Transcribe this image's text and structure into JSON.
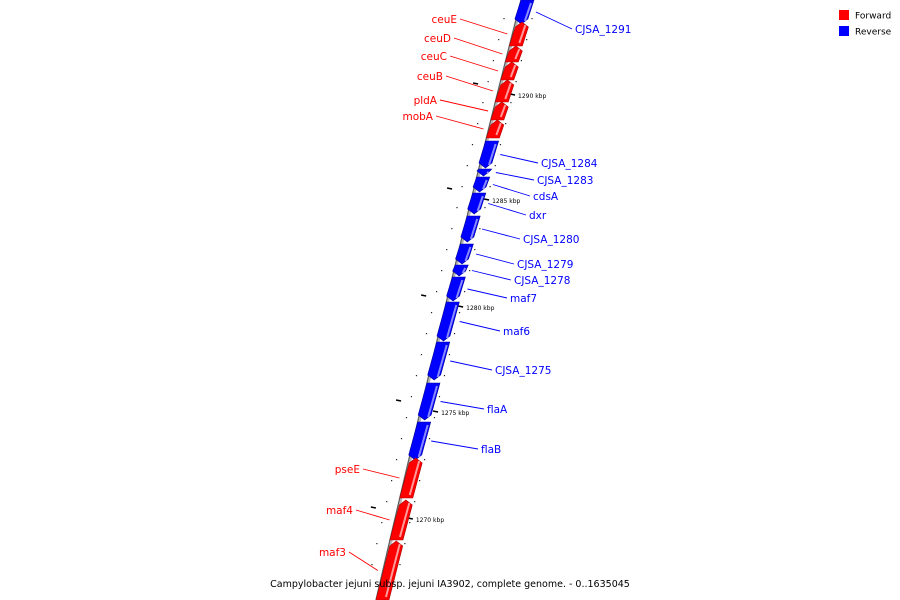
{
  "caption": "Campylobacter jejuni subsp. jejuni IA3902, complete genome. - 0..1635045",
  "legend": {
    "forward": {
      "label": "Forward",
      "color": "#ff0000"
    },
    "reverse": {
      "label": "Reverse",
      "color": "#0000ff"
    }
  },
  "scale_labels": [
    {
      "label": "1290 kbp",
      "kbp": 1290
    },
    {
      "label": "1285 kbp",
      "kbp": 1285
    },
    {
      "label": "1280 kbp",
      "kbp": 1280
    },
    {
      "label": "1275 kbp",
      "kbp": 1275
    },
    {
      "label": "1270 kbp",
      "kbp": 1270
    }
  ],
  "genes": [
    {
      "name": "CJSA_1291",
      "strand": "reverse"
    },
    {
      "name": "ceuE",
      "strand": "forward"
    },
    {
      "name": "ceuD",
      "strand": "forward"
    },
    {
      "name": "ceuC",
      "strand": "forward"
    },
    {
      "name": "ceuB",
      "strand": "forward"
    },
    {
      "name": "pldA",
      "strand": "forward"
    },
    {
      "name": "mobA",
      "strand": "forward"
    },
    {
      "name": "CJSA_1284",
      "strand": "reverse"
    },
    {
      "name": "CJSA_1283",
      "strand": "reverse"
    },
    {
      "name": "cdsA",
      "strand": "reverse"
    },
    {
      "name": "dxr",
      "strand": "reverse"
    },
    {
      "name": "CJSA_1280",
      "strand": "reverse"
    },
    {
      "name": "CJSA_1279",
      "strand": "reverse"
    },
    {
      "name": "CJSA_1278",
      "strand": "reverse"
    },
    {
      "name": "maf7",
      "strand": "reverse"
    },
    {
      "name": "maf6",
      "strand": "reverse"
    },
    {
      "name": "CJSA_1275",
      "strand": "reverse"
    },
    {
      "name": "flaA",
      "strand": "reverse"
    },
    {
      "name": "flaB",
      "strand": "reverse"
    },
    {
      "name": "pseE",
      "strand": "forward"
    },
    {
      "name": "maf4",
      "strand": "forward"
    },
    {
      "name": "maf3",
      "strand": "forward"
    }
  ]
}
